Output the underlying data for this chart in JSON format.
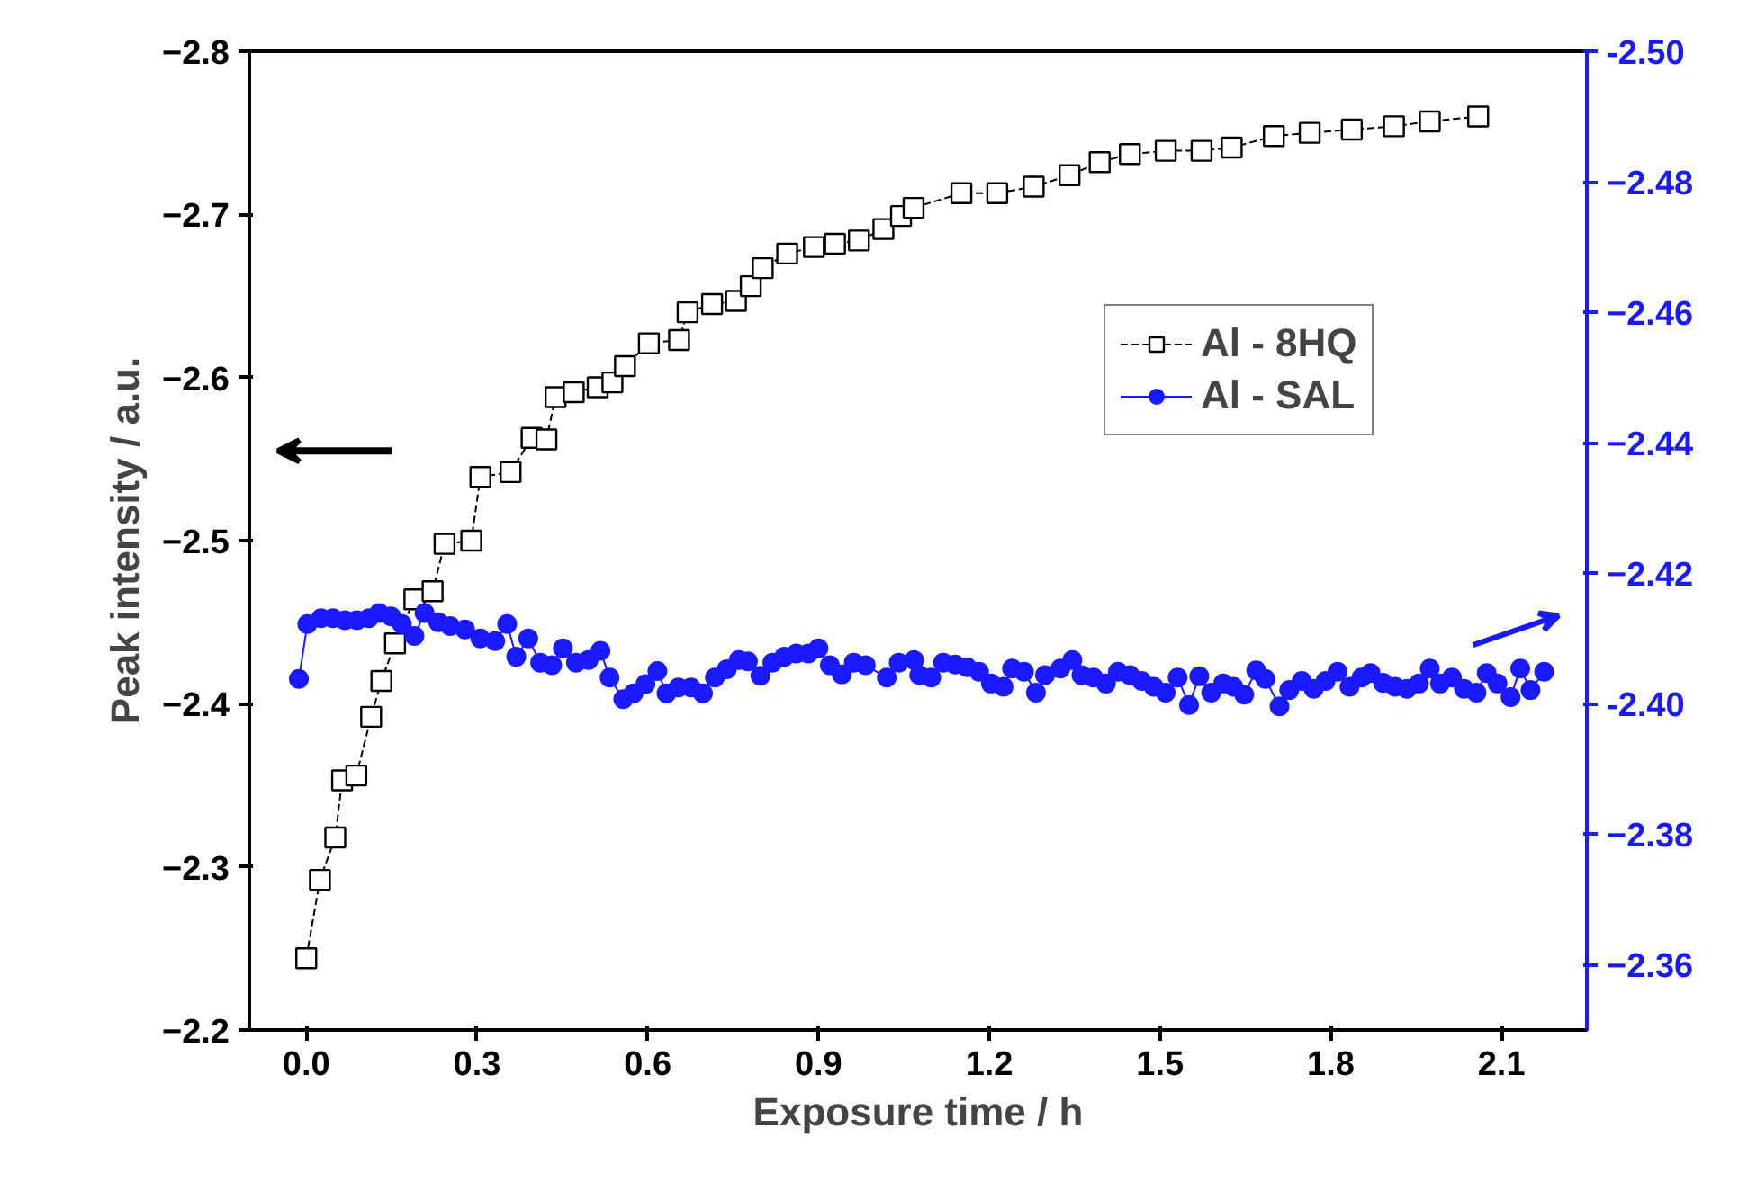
{
  "chart_data": {
    "type": "line",
    "xlabel": "Exposure time / h",
    "ylabel": "Peak intensity / a.u.",
    "xlim": [
      -0.1,
      2.25
    ],
    "xticks": [
      {
        "value": 0.0,
        "label": "0.0"
      },
      0.3,
      0.6,
      0.9,
      1.2,
      1.5,
      1.8,
      2.1
    ],
    "ylim": [
      -2.2,
      -2.8
    ],
    "yticks": [
      -2.2,
      -2.3,
      -2.4,
      -2.5,
      -2.6,
      -2.7,
      -2.8
    ],
    "y2lim": [
      -2.35,
      -2.5
    ],
    "y2ticks": [
      -2.36,
      -2.38,
      {
        "value": -2.4,
        "label": "-2.40"
      },
      -2.42,
      -2.44,
      -2.46,
      -2.48,
      {
        "value": -2.5,
        "label": "-2.50"
      }
    ],
    "legend": "right",
    "grid": false,
    "series": [
      {
        "name": "Al - 8HQ",
        "color": "#000000",
        "marker": "square",
        "line_style": "dashed",
        "axis": "y",
        "x": [
          0,
          0.024,
          0.051,
          0.063,
          0.088,
          0.114,
          0.132,
          0.156,
          0.19,
          0.222,
          0.243,
          0.29,
          0.306,
          0.359,
          0.396,
          0.422,
          0.438,
          0.47,
          0.512,
          0.538,
          0.56,
          0.602,
          0.655,
          0.67,
          0.713,
          0.755,
          0.781,
          0.802,
          0.845,
          0.892,
          0.929,
          0.971,
          1.014,
          1.045,
          1.067,
          1.151,
          1.214,
          1.278,
          1.341,
          1.394,
          1.447,
          1.51,
          1.573,
          1.626,
          1.7,
          1.763,
          1.837,
          1.911,
          1.974,
          2.059
        ],
        "values": [
          -2.244,
          -2.292,
          -2.318,
          -2.353,
          -2.356,
          -2.392,
          -2.414,
          -2.437,
          -2.464,
          -2.469,
          -2.498,
          -2.5,
          -2.539,
          -2.542,
          -2.563,
          -2.562,
          -2.588,
          -2.591,
          -2.594,
          -2.597,
          -2.607,
          -2.621,
          -2.623,
          -2.64,
          -2.645,
          -2.647,
          -2.656,
          -2.667,
          -2.676,
          -2.68,
          -2.682,
          -2.684,
          -2.691,
          -2.699,
          -2.704,
          -2.713,
          -2.713,
          -2.717,
          -2.724,
          -2.732,
          -2.737,
          -2.739,
          -2.739,
          -2.741,
          -2.748,
          -2.75,
          -2.752,
          -2.754,
          -2.757,
          -2.76
        ]
      },
      {
        "name": "Al - SAL",
        "color": "#1a1aff",
        "marker": "circle",
        "line_style": "solid",
        "axis": "y2",
        "x": [
          -0.013,
          0.002,
          0.026,
          0.047,
          0.068,
          0.089,
          0.11,
          0.128,
          0.149,
          0.168,
          0.19,
          0.208,
          0.232,
          0.253,
          0.279,
          0.306,
          0.332,
          0.353,
          0.369,
          0.39,
          0.411,
          0.432,
          0.451,
          0.474,
          0.496,
          0.517,
          0.533,
          0.557,
          0.575,
          0.596,
          0.617,
          0.633,
          0.654,
          0.676,
          0.697,
          0.718,
          0.739,
          0.76,
          0.776,
          0.798,
          0.819,
          0.84,
          0.861,
          0.882,
          0.9,
          0.92,
          0.941,
          0.962,
          0.983,
          1.02,
          1.041,
          1.068,
          1.077,
          1.098,
          1.119,
          1.14,
          1.161,
          1.182,
          1.203,
          1.225,
          1.24,
          1.261,
          1.282,
          1.298,
          1.325,
          1.346,
          1.362,
          1.383,
          1.405,
          1.426,
          1.447,
          1.468,
          1.489,
          1.51,
          1.531,
          1.551,
          1.569,
          1.59,
          1.611,
          1.629,
          1.648,
          1.669,
          1.685,
          1.71,
          1.727,
          1.749,
          1.77,
          1.791,
          1.812,
          1.833,
          1.854,
          1.87,
          1.892,
          1.913,
          1.934,
          1.955,
          1.974,
          1.992,
          2.013,
          2.034,
          2.056,
          2.074,
          2.093,
          2.116,
          2.133,
          2.151,
          2.175
        ],
        "values": [
          -2.4038,
          -2.4122,
          -2.4131,
          -2.4131,
          -2.4128,
          -2.4128,
          -2.4131,
          -2.4139,
          -2.4134,
          -2.4122,
          -2.4104,
          -2.4139,
          -2.4125,
          -2.4119,
          -2.4114,
          -2.41,
          -2.4096,
          -2.4122,
          -2.4072,
          -2.41,
          -2.4063,
          -2.4059,
          -2.4085,
          -2.4063,
          -2.4067,
          -2.4081,
          -2.404,
          -2.4007,
          -2.4016,
          -2.403,
          -2.405,
          -2.4016,
          -2.4025,
          -2.4025,
          -2.4016,
          -2.404,
          -2.4053,
          -2.4067,
          -2.4065,
          -2.4043,
          -2.4063,
          -2.4072,
          -2.4077,
          -2.4077,
          -2.4085,
          -2.4059,
          -2.4045,
          -2.4063,
          -2.4059,
          -2.404,
          -2.4063,
          -2.4067,
          -2.4044,
          -2.404,
          -2.4063,
          -2.406,
          -2.4056,
          -2.4049,
          -2.4031,
          -2.4026,
          -2.4054,
          -2.4049,
          -2.4017,
          -2.4044,
          -2.4054,
          -2.4067,
          -2.4044,
          -2.404,
          -2.4031,
          -2.4049,
          -2.4044,
          -2.4035,
          -2.4026,
          -2.4017,
          -2.404,
          -2.3998,
          -2.4042,
          -2.4017,
          -2.4031,
          -2.4026,
          -2.4014,
          -2.4051,
          -2.4038,
          -2.3996,
          -2.4021,
          -2.4035,
          -2.4023,
          -2.4035,
          -2.4049,
          -2.4026,
          -2.404,
          -2.4047,
          -2.4032,
          -2.4026,
          -2.4023,
          -2.4031,
          -2.4054,
          -2.4031,
          -2.404,
          -2.4023,
          -2.4017,
          -2.4047,
          -2.4031,
          -2.401,
          -2.4054,
          -2.4021,
          -2.4049
        ]
      }
    ]
  }
}
